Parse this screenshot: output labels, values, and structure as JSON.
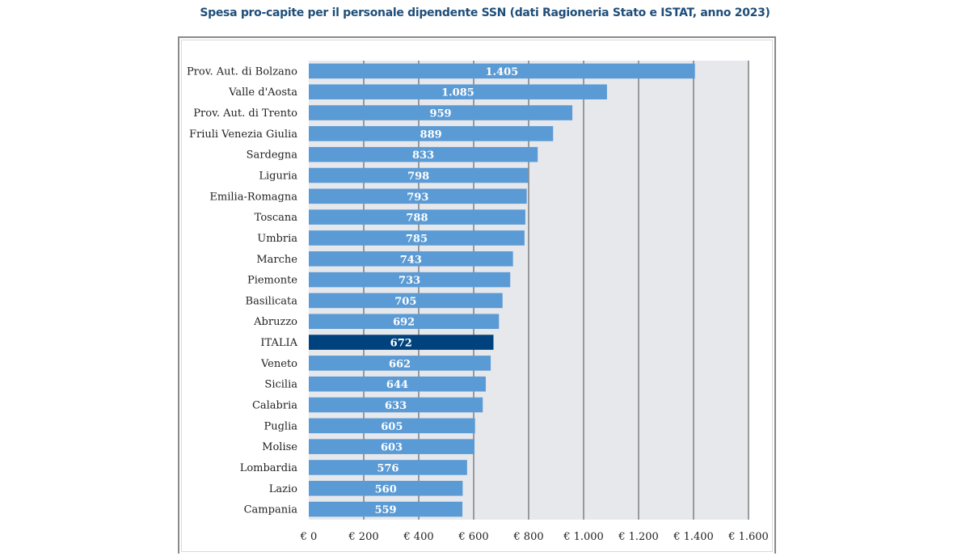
{
  "chart_data": {
    "type": "bar",
    "orientation": "horizontal",
    "title": "Spesa pro-capite per il personale dipendente SSN (dati Ragioneria Stato e ISTAT, anno 2023)",
    "xlabel": "",
    "ylabel": "",
    "xlim": [
      0,
      1600
    ],
    "x_ticks": [
      0,
      200,
      400,
      600,
      800,
      1000,
      1200,
      1400,
      1600
    ],
    "x_tick_labels": [
      "€ 0",
      "€ 200",
      "€ 400",
      "€ 600",
      "€ 800",
      "€ 1.000",
      "€ 1.200",
      "€ 1.400",
      "€ 1.600"
    ],
    "grid": true,
    "legend": "none",
    "categories": [
      "Prov. Aut. di Bolzano",
      "Valle d'Aosta",
      "Prov. Aut. di Trento",
      "Friuli Venezia Giulia",
      "Sardegna",
      "Liguria",
      "Emilia-Romagna",
      "Toscana",
      "Umbria",
      "Marche",
      "Piemonte",
      "Basilicata",
      "Abruzzo",
      "ITALIA",
      "Veneto",
      "Sicilia",
      "Calabria",
      "Puglia",
      "Molise",
      "Lombardia",
      "Lazio",
      "Campania"
    ],
    "values": [
      1405,
      1085,
      959,
      889,
      833,
      798,
      793,
      788,
      785,
      743,
      733,
      705,
      692,
      672,
      662,
      644,
      633,
      605,
      603,
      576,
      560,
      559
    ],
    "value_labels": [
      "1.405",
      "1.085",
      "959",
      "889",
      "833",
      "798",
      "793",
      "788",
      "785",
      "743",
      "733",
      "705",
      "692",
      "672",
      "662",
      "644",
      "633",
      "605",
      "603",
      "576",
      "560",
      "559"
    ],
    "highlight_category": "ITALIA",
    "colors": {
      "bar": "#5b9bd5",
      "highlight": "#00427e",
      "plot_background": "#e7e8ec",
      "gridline": "#7f7f7f",
      "title": "#1f4e79"
    }
  }
}
